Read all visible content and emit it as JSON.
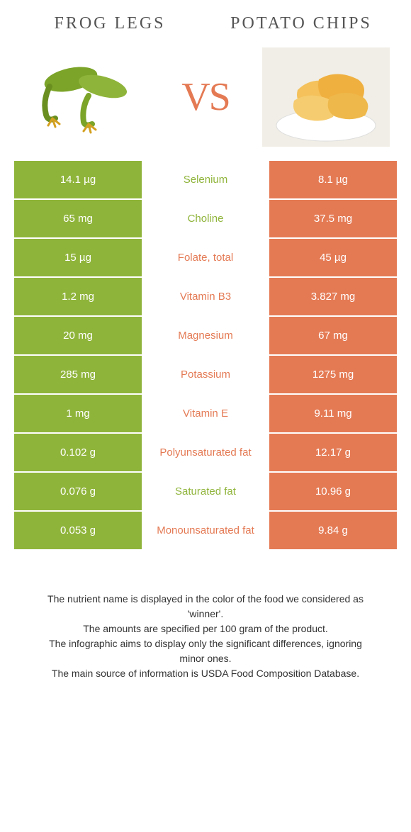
{
  "food_left": {
    "title": "FROG LEGS"
  },
  "food_right": {
    "title": "POTATO CHIPS"
  },
  "vs_text": "VS",
  "colors": {
    "left_bg": "#8fb43a",
    "right_bg": "#e47a54",
    "left_text_winner": "#8fb43a",
    "right_text_winner": "#e47a54"
  },
  "rows": [
    {
      "left_val": "14.1 µg",
      "nutrient": "Selenium",
      "right_val": "8.1 µg",
      "winner": "left"
    },
    {
      "left_val": "65 mg",
      "nutrient": "Choline",
      "right_val": "37.5 mg",
      "winner": "left"
    },
    {
      "left_val": "15 µg",
      "nutrient": "Folate, total",
      "right_val": "45 µg",
      "winner": "right"
    },
    {
      "left_val": "1.2 mg",
      "nutrient": "Vitamin B3",
      "right_val": "3.827 mg",
      "winner": "right"
    },
    {
      "left_val": "20 mg",
      "nutrient": "Magnesium",
      "right_val": "67 mg",
      "winner": "right"
    },
    {
      "left_val": "285 mg",
      "nutrient": "Potassium",
      "right_val": "1275 mg",
      "winner": "right"
    },
    {
      "left_val": "1 mg",
      "nutrient": "Vitamin E",
      "right_val": "9.11 mg",
      "winner": "right"
    },
    {
      "left_val": "0.102 g",
      "nutrient": "Polyunsaturated fat",
      "right_val": "12.17 g",
      "winner": "right"
    },
    {
      "left_val": "0.076 g",
      "nutrient": "Saturated fat",
      "right_val": "10.96 g",
      "winner": "left"
    },
    {
      "left_val": "0.053 g",
      "nutrient": "Monounsaturated fat",
      "right_val": "9.84 g",
      "winner": "right"
    }
  ],
  "footer": {
    "line1": "The nutrient name is displayed in the color of the food we considered as 'winner'.",
    "line2": "The amounts are specified per 100 gram of the product.",
    "line3": "The infographic aims to display only the significant differences, ignoring minor ones.",
    "line4": "The main source of information is USDA Food Composition Database."
  }
}
